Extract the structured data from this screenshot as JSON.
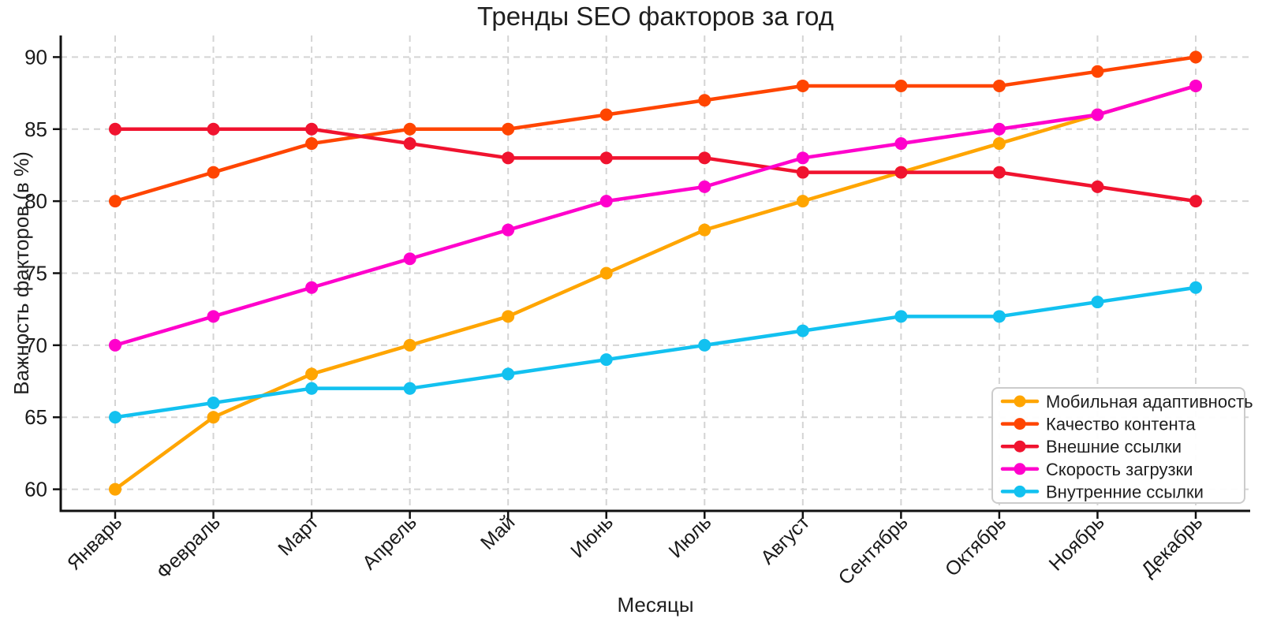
{
  "chart_data": {
    "type": "line",
    "title": "Тренды SEO факторов за год",
    "xlabel": "Месяцы",
    "ylabel": "Важность факторов (в %)",
    "categories": [
      "Январь",
      "Февраль",
      "Март",
      "Апрель",
      "Май",
      "Июнь",
      "Июль",
      "Август",
      "Сентябрь",
      "Октябрь",
      "Ноябрь",
      "Декабрь"
    ],
    "yticks": [
      60,
      65,
      70,
      75,
      80,
      85,
      90
    ],
    "ylim": [
      58.5,
      91.5
    ],
    "grid": true,
    "grid_style": "dashed",
    "legend_position": "lower right",
    "series": [
      {
        "name": "Мобильная адаптивность",
        "color": "#FFA500",
        "values": [
          60,
          65,
          68,
          70,
          72,
          75,
          78,
          80,
          82,
          84,
          86,
          88
        ]
      },
      {
        "name": "Качество контента",
        "color": "#FF4500",
        "values": [
          80,
          82,
          84,
          85,
          85,
          86,
          87,
          88,
          88,
          88,
          89,
          90
        ]
      },
      {
        "name": "Внешние ссылки",
        "color": "#F0132F",
        "values": [
          85,
          85,
          85,
          84,
          83,
          83,
          83,
          82,
          82,
          82,
          81,
          80
        ]
      },
      {
        "name": "Скорость загрузки",
        "color": "#FF00CC",
        "values": [
          70,
          72,
          74,
          76,
          78,
          80,
          81,
          83,
          84,
          85,
          86,
          88
        ]
      },
      {
        "name": "Внутренние ссылки",
        "color": "#12C1F0",
        "values": [
          65,
          66,
          67,
          67,
          68,
          69,
          70,
          71,
          72,
          72,
          73,
          74
        ]
      }
    ],
    "colors": {
      "grid": "#d4d4d4",
      "spine": "#111111",
      "tick_label": "#1a1a1a",
      "legend_border": "#cccccc",
      "legend_bg": "#ffffff"
    }
  }
}
